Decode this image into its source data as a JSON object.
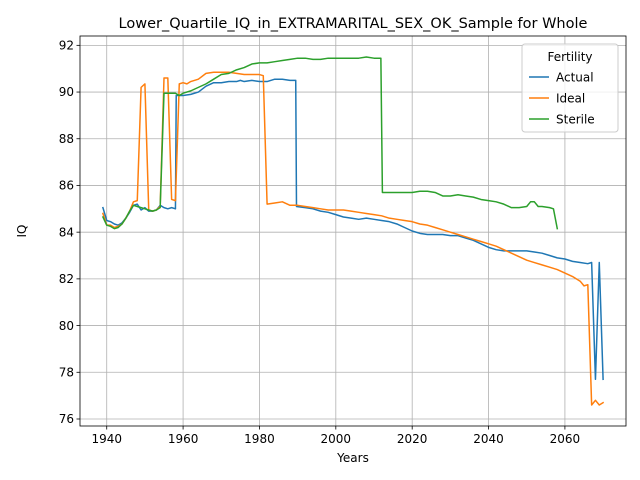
{
  "chart_data": {
    "type": "line",
    "title": "Lower_Quartile_IQ_in_EXTRAMARITAL_SEX_OK_Sample for Whole",
    "xlabel": "Years",
    "ylabel": "IQ",
    "xlim": [
      1933,
      2076
    ],
    "ylim": [
      75.7,
      92.4
    ],
    "xticks": [
      1940,
      1960,
      1980,
      2000,
      2020,
      2040,
      2060
    ],
    "yticks": [
      76,
      78,
      80,
      82,
      84,
      86,
      88,
      90,
      92
    ],
    "grid": true,
    "legend": {
      "title": "Fertility",
      "position": "top-right"
    },
    "series": [
      {
        "name": "Actual",
        "color": "#1f77b4",
        "points": [
          [
            1939,
            85.05
          ],
          [
            1940,
            84.5
          ],
          [
            1941,
            84.45
          ],
          [
            1942,
            84.35
          ],
          [
            1943,
            84.3
          ],
          [
            1944,
            84.4
          ],
          [
            1945,
            84.6
          ],
          [
            1946,
            84.85
          ],
          [
            1947,
            85.15
          ],
          [
            1948,
            85.2
          ],
          [
            1949,
            84.95
          ],
          [
            1950,
            85.05
          ],
          [
            1951,
            84.9
          ],
          [
            1952,
            84.9
          ],
          [
            1953,
            84.95
          ],
          [
            1954,
            85.15
          ],
          [
            1955,
            85.05
          ],
          [
            1956,
            85.0
          ],
          [
            1957,
            85.05
          ],
          [
            1958,
            85.0
          ],
          [
            1958.2,
            89.85
          ],
          [
            1960,
            89.85
          ],
          [
            1962,
            89.9
          ],
          [
            1964,
            90.0
          ],
          [
            1966,
            90.25
          ],
          [
            1968,
            90.4
          ],
          [
            1970,
            90.4
          ],
          [
            1972,
            90.45
          ],
          [
            1974,
            90.45
          ],
          [
            1975,
            90.5
          ],
          [
            1976,
            90.45
          ],
          [
            1978,
            90.5
          ],
          [
            1980,
            90.45
          ],
          [
            1982,
            90.45
          ],
          [
            1984,
            90.55
          ],
          [
            1986,
            90.55
          ],
          [
            1988,
            90.5
          ],
          [
            1989.5,
            90.5
          ],
          [
            1989.7,
            85.1
          ],
          [
            1992,
            85.05
          ],
          [
            1994,
            85.0
          ],
          [
            1996,
            84.9
          ],
          [
            1998,
            84.85
          ],
          [
            2000,
            84.75
          ],
          [
            2002,
            84.65
          ],
          [
            2004,
            84.6
          ],
          [
            2006,
            84.55
          ],
          [
            2008,
            84.6
          ],
          [
            2010,
            84.55
          ],
          [
            2012,
            84.5
          ],
          [
            2014,
            84.45
          ],
          [
            2016,
            84.35
          ],
          [
            2018,
            84.2
          ],
          [
            2020,
            84.05
          ],
          [
            2022,
            83.95
          ],
          [
            2024,
            83.9
          ],
          [
            2026,
            83.9
          ],
          [
            2028,
            83.9
          ],
          [
            2030,
            83.85
          ],
          [
            2032,
            83.85
          ],
          [
            2034,
            83.75
          ],
          [
            2036,
            83.65
          ],
          [
            2038,
            83.5
          ],
          [
            2040,
            83.35
          ],
          [
            2042,
            83.25
          ],
          [
            2044,
            83.2
          ],
          [
            2046,
            83.2
          ],
          [
            2048,
            83.2
          ],
          [
            2050,
            83.2
          ],
          [
            2052,
            83.15
          ],
          [
            2054,
            83.1
          ],
          [
            2056,
            83.0
          ],
          [
            2058,
            82.9
          ],
          [
            2060,
            82.85
          ],
          [
            2062,
            82.75
          ],
          [
            2064,
            82.7
          ],
          [
            2066,
            82.65
          ],
          [
            2067,
            82.7
          ],
          [
            2068,
            77.7
          ],
          [
            2069,
            82.7
          ],
          [
            2070,
            77.7
          ]
        ]
      },
      {
        "name": "Ideal",
        "color": "#ff7f0e",
        "points": [
          [
            1939,
            84.8
          ],
          [
            1940,
            84.3
          ],
          [
            1941,
            84.3
          ],
          [
            1942,
            84.2
          ],
          [
            1943,
            84.25
          ],
          [
            1944,
            84.35
          ],
          [
            1945,
            84.6
          ],
          [
            1946,
            84.9
          ],
          [
            1947,
            85.3
          ],
          [
            1948,
            85.35
          ],
          [
            1949,
            90.2
          ],
          [
            1950,
            90.35
          ],
          [
            1951,
            84.95
          ],
          [
            1952,
            84.9
          ],
          [
            1953,
            84.95
          ],
          [
            1954,
            85.1
          ],
          [
            1955,
            90.6
          ],
          [
            1956,
            90.6
          ],
          [
            1957,
            85.4
          ],
          [
            1958,
            85.35
          ],
          [
            1959,
            90.35
          ],
          [
            1960,
            90.4
          ],
          [
            1961,
            90.35
          ],
          [
            1962,
            90.45
          ],
          [
            1964,
            90.55
          ],
          [
            1966,
            90.8
          ],
          [
            1968,
            90.85
          ],
          [
            1970,
            90.85
          ],
          [
            1972,
            90.85
          ],
          [
            1974,
            90.8
          ],
          [
            1976,
            90.75
          ],
          [
            1978,
            90.75
          ],
          [
            1980,
            90.75
          ],
          [
            1981,
            90.7
          ],
          [
            1982,
            85.2
          ],
          [
            1984,
            85.25
          ],
          [
            1986,
            85.3
          ],
          [
            1988,
            85.15
          ],
          [
            1990,
            85.15
          ],
          [
            1992,
            85.1
          ],
          [
            1994,
            85.05
          ],
          [
            1996,
            85.0
          ],
          [
            1998,
            84.95
          ],
          [
            2000,
            84.95
          ],
          [
            2002,
            84.95
          ],
          [
            2004,
            84.9
          ],
          [
            2006,
            84.85
          ],
          [
            2008,
            84.8
          ],
          [
            2010,
            84.75
          ],
          [
            2012,
            84.7
          ],
          [
            2014,
            84.6
          ],
          [
            2016,
            84.55
          ],
          [
            2018,
            84.5
          ],
          [
            2020,
            84.45
          ],
          [
            2022,
            84.35
          ],
          [
            2024,
            84.3
          ],
          [
            2026,
            84.2
          ],
          [
            2028,
            84.1
          ],
          [
            2030,
            84.0
          ],
          [
            2032,
            83.9
          ],
          [
            2034,
            83.8
          ],
          [
            2036,
            83.7
          ],
          [
            2038,
            83.6
          ],
          [
            2040,
            83.5
          ],
          [
            2042,
            83.4
          ],
          [
            2044,
            83.25
          ],
          [
            2046,
            83.1
          ],
          [
            2048,
            82.95
          ],
          [
            2050,
            82.8
          ],
          [
            2052,
            82.7
          ],
          [
            2054,
            82.6
          ],
          [
            2056,
            82.5
          ],
          [
            2058,
            82.4
          ],
          [
            2060,
            82.25
          ],
          [
            2062,
            82.1
          ],
          [
            2064,
            81.9
          ],
          [
            2065,
            81.7
          ],
          [
            2066,
            81.75
          ],
          [
            2067,
            76.6
          ],
          [
            2068,
            76.8
          ],
          [
            2069,
            76.6
          ],
          [
            2070,
            76.7
          ]
        ]
      },
      {
        "name": "Sterile",
        "color": "#2ca02c",
        "points": [
          [
            1939,
            84.65
          ],
          [
            1940,
            84.3
          ],
          [
            1941,
            84.25
          ],
          [
            1942,
            84.15
          ],
          [
            1943,
            84.2
          ],
          [
            1944,
            84.35
          ],
          [
            1945,
            84.6
          ],
          [
            1946,
            84.9
          ],
          [
            1947,
            85.15
          ],
          [
            1948,
            85.1
          ],
          [
            1949,
            85.05
          ],
          [
            1950,
            85.0
          ],
          [
            1951,
            84.95
          ],
          [
            1952,
            84.9
          ],
          [
            1953,
            84.95
          ],
          [
            1954,
            85.05
          ],
          [
            1955,
            89.95
          ],
          [
            1956,
            89.95
          ],
          [
            1958,
            89.95
          ],
          [
            1959,
            89.85
          ],
          [
            1960,
            89.95
          ],
          [
            1962,
            90.05
          ],
          [
            1964,
            90.2
          ],
          [
            1966,
            90.35
          ],
          [
            1968,
            90.55
          ],
          [
            1970,
            90.75
          ],
          [
            1972,
            90.8
          ],
          [
            1974,
            90.95
          ],
          [
            1976,
            91.05
          ],
          [
            1978,
            91.2
          ],
          [
            1980,
            91.25
          ],
          [
            1982,
            91.25
          ],
          [
            1984,
            91.3
          ],
          [
            1986,
            91.35
          ],
          [
            1988,
            91.4
          ],
          [
            1990,
            91.45
          ],
          [
            1992,
            91.45
          ],
          [
            1994,
            91.4
          ],
          [
            1996,
            91.4
          ],
          [
            1998,
            91.45
          ],
          [
            2000,
            91.45
          ],
          [
            2002,
            91.45
          ],
          [
            2004,
            91.45
          ],
          [
            2006,
            91.45
          ],
          [
            2008,
            91.5
          ],
          [
            2010,
            91.45
          ],
          [
            2011.8,
            91.45
          ],
          [
            2012.2,
            85.7
          ],
          [
            2014,
            85.7
          ],
          [
            2016,
            85.7
          ],
          [
            2018,
            85.7
          ],
          [
            2020,
            85.7
          ],
          [
            2022,
            85.75
          ],
          [
            2024,
            85.75
          ],
          [
            2026,
            85.7
          ],
          [
            2028,
            85.55
          ],
          [
            2030,
            85.55
          ],
          [
            2032,
            85.6
          ],
          [
            2034,
            85.55
          ],
          [
            2036,
            85.5
          ],
          [
            2038,
            85.4
          ],
          [
            2040,
            85.35
          ],
          [
            2042,
            85.3
          ],
          [
            2044,
            85.2
          ],
          [
            2046,
            85.05
          ],
          [
            2048,
            85.05
          ],
          [
            2050,
            85.1
          ],
          [
            2051,
            85.3
          ],
          [
            2052,
            85.3
          ],
          [
            2053,
            85.1
          ],
          [
            2054,
            85.1
          ],
          [
            2056,
            85.05
          ],
          [
            2057,
            85.0
          ],
          [
            2058,
            84.15
          ]
        ]
      }
    ]
  }
}
